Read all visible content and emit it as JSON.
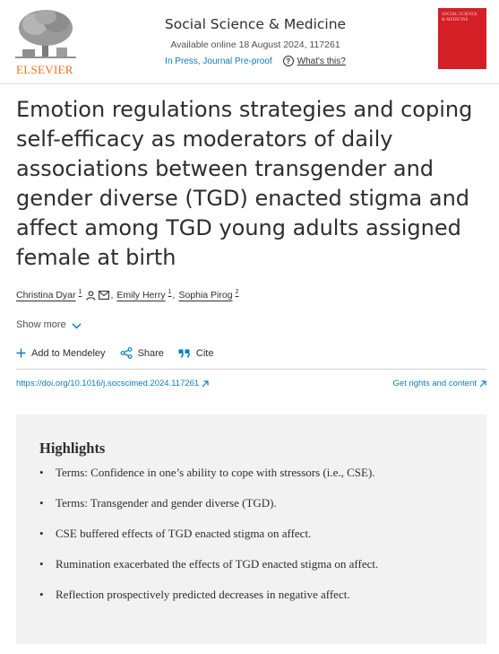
{
  "header": {
    "publisher": "ELSEVIER",
    "journal_title": "Social Science & Medicine",
    "available": "Available online 18 August 2024, 117261",
    "status": "In Press, Journal Pre-proof",
    "whats_this": "What's this?",
    "cover_text": "SOCIAL SCIENCE & MEDICINE"
  },
  "article": {
    "title": "Emotion regulations strategies and coping self-efficacy as moderators of daily associations between transgender and gender diverse (TGD) enacted stigma and affect among TGD young adults assigned female at birth",
    "authors": [
      {
        "name": "Christina Dyar",
        "sup": "1"
      },
      {
        "name": "Emily Herry",
        "sup": "1"
      },
      {
        "name": "Sophia Pirog",
        "sup": "2"
      }
    ],
    "show_more": "Show more",
    "actions": {
      "mendeley": "Add to Mendeley",
      "share": "Share",
      "cite": "Cite"
    },
    "doi": "https://doi.org/10.1016/j.socscimed.2024.117261",
    "rights": "Get rights and content"
  },
  "highlights": {
    "title": "Highlights",
    "items": [
      "Terms: Confidence in one’s ability to cope with stressors (i.e., CSE).",
      "Terms: Transgender and gender diverse (TGD).",
      "CSE buffered effects of TGD enacted stigma on affect.",
      "Rumination exacerbated the effects of TGD enacted stigma on affect.",
      "Reflection prospectively predicted decreases in negative affect."
    ]
  },
  "colors": {
    "link": "#0c7dbb",
    "publisher_orange": "#e9711c",
    "cover_red": "#d41f27",
    "highlight_bg": "#f2f2f2"
  }
}
